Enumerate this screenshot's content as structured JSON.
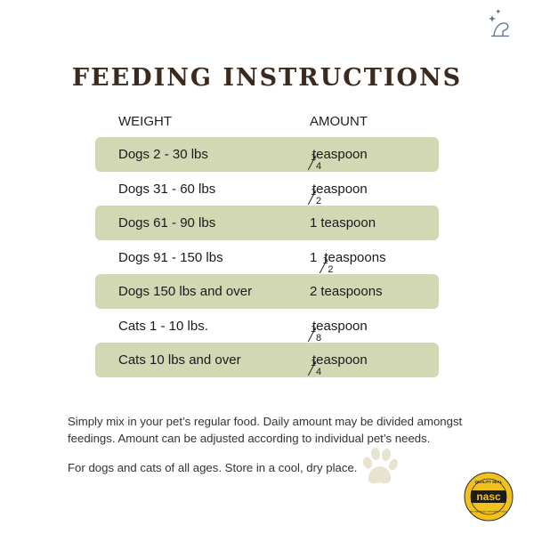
{
  "title": "FEEDING INSTRUCTIONS",
  "table": {
    "headers": [
      "WEIGHT",
      "AMOUNT"
    ],
    "rows": [
      {
        "weight": "Dogs 2 - 30 lbs",
        "whole": "",
        "num": "1",
        "den": "4",
        "unit": "teaspoon"
      },
      {
        "weight": "Dogs 31 - 60 lbs",
        "whole": "",
        "num": "1",
        "den": "2",
        "unit": "teaspoon"
      },
      {
        "weight": "Dogs 61 - 90 lbs",
        "whole": "1",
        "num": "",
        "den": "",
        "unit": "teaspoon"
      },
      {
        "weight": "Dogs 91 - 150 lbs",
        "whole": "1",
        "num": "1",
        "den": "2",
        "unit": "teaspoons"
      },
      {
        "weight": "Dogs 150 lbs and over",
        "whole": "2",
        "num": "",
        "den": "",
        "unit": "teaspoons"
      },
      {
        "weight": "Cats 1 - 10 lbs.",
        "whole": "",
        "num": "1",
        "den": "8",
        "unit": "teaspoon"
      },
      {
        "weight": "Cats 10 lbs and over",
        "whole": "",
        "num": "1",
        "den": "4",
        "unit": "teaspoon"
      }
    ]
  },
  "notes": [
    "Simply mix in your pet’s regular food. Daily amount may be divided amongst feedings. Amount can be adjusted according to individual pet’s needs.",
    "For dogs and cats of all ages. Store in a cool, dry place."
  ],
  "seal": {
    "top_text": "QUALITY SEAL",
    "center_text": "nasc",
    "bottom_text": "NATIONAL ANIMAL SUPPLEMENT COUNCIL"
  },
  "colors": {
    "row_shade": "#d2d8b4",
    "title": "#3b2a1e",
    "paw": "#e6e3cf",
    "logo": "#5a6e8c",
    "seal_yellow": "#f2c21a"
  }
}
